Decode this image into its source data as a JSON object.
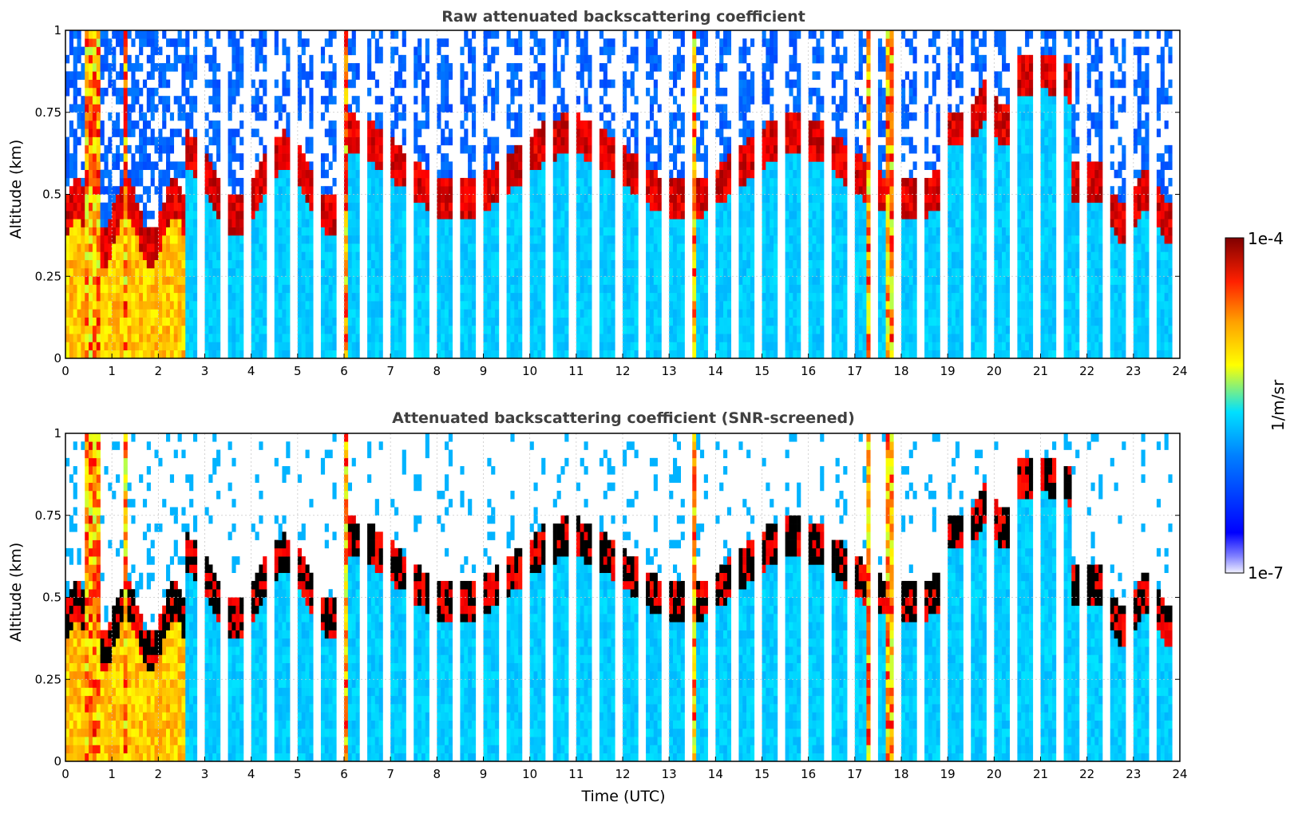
{
  "chart_data": [
    {
      "type": "heatmap",
      "title": "Raw attenuated backscattering coefficient",
      "ylabel": "Altitude (km)",
      "xlabel": "",
      "xlim": [
        0,
        24
      ],
      "ylim": [
        0,
        1
      ],
      "xticks": [
        "0",
        "1",
        "2",
        "3",
        "4",
        "5",
        "6",
        "7",
        "8",
        "9",
        "10",
        "11",
        "12",
        "13",
        "14",
        "15",
        "16",
        "17",
        "18",
        "19",
        "20",
        "21",
        "22",
        "23",
        "24"
      ],
      "yticks": [
        "0",
        "0.25",
        "0.5",
        "0.75",
        "1"
      ],
      "grid": true,
      "screened": false
    },
    {
      "type": "heatmap",
      "title": "Attenuated backscattering coefficient (SNR-screened)",
      "ylabel": "Altitude (km)",
      "xlabel": "Time (UTC)",
      "xlim": [
        0,
        24
      ],
      "ylim": [
        0,
        1
      ],
      "xticks": [
        "0",
        "1",
        "2",
        "3",
        "4",
        "5",
        "6",
        "7",
        "8",
        "9",
        "10",
        "11",
        "12",
        "13",
        "14",
        "15",
        "16",
        "17",
        "18",
        "19",
        "20",
        "21",
        "22",
        "23",
        "24"
      ],
      "yticks": [
        "0",
        "0.25",
        "0.5",
        "0.75",
        "1"
      ],
      "grid": true,
      "screened": true
    }
  ],
  "colorbar": {
    "label": "1/m/sr",
    "max_label": "1e-4",
    "min_label": "1e-7",
    "scale": "log",
    "colormap": "jet"
  },
  "colors": {
    "title": "#404040",
    "grid": "#c8c8c8"
  }
}
